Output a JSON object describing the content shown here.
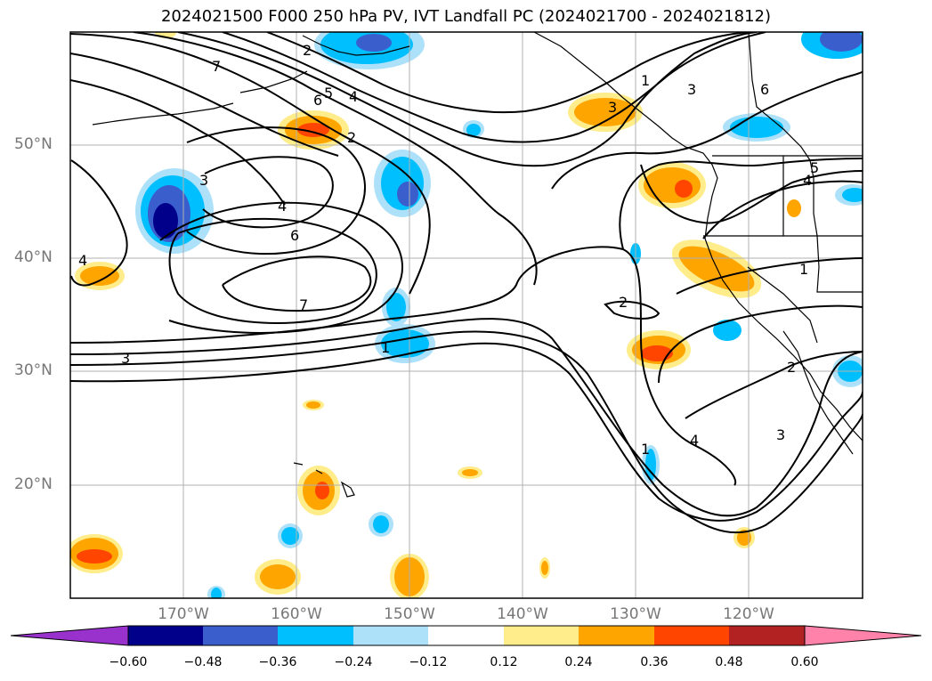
{
  "title": "2024021500 F000 250 hPa PV, IVT Landfall PC (2024021700 - 2024021812)",
  "map": {
    "projection": "plate-carree",
    "lon_range": [
      -180,
      -110
    ],
    "lat_range": [
      10,
      60
    ],
    "lat_labels": [
      "50°N",
      "40°N",
      "30°N",
      "20°N"
    ],
    "lon_labels": [
      "170°W",
      "160°W",
      "150°W",
      "140°W",
      "130°W",
      "120°W"
    ],
    "gridlines": true
  },
  "contours": {
    "field": "250 hPa PV",
    "color": "#000000",
    "labels": [
      "1",
      "2",
      "3",
      "4",
      "5",
      "6",
      "7",
      "3",
      "4",
      "6",
      "7",
      "1",
      "2",
      "3",
      "4",
      "3",
      "6",
      "1",
      "3",
      "4",
      "5",
      "1",
      "2",
      "2",
      "4"
    ]
  },
  "colorbar": {
    "ticks": [
      "−0.60",
      "−0.48",
      "−0.36",
      "−0.24",
      "−0.12",
      "0.12",
      "0.24",
      "0.36",
      "0.48",
      "0.60"
    ],
    "colors": [
      "#9932CC",
      "#00008B",
      "#3A5FCD",
      "#00BFFF",
      "#ADE1FA",
      "#FFFFFF",
      "#FFEC8B",
      "#FFA500",
      "#FF4500",
      "#B22222",
      "#FF82AB"
    ],
    "extend": "both"
  }
}
